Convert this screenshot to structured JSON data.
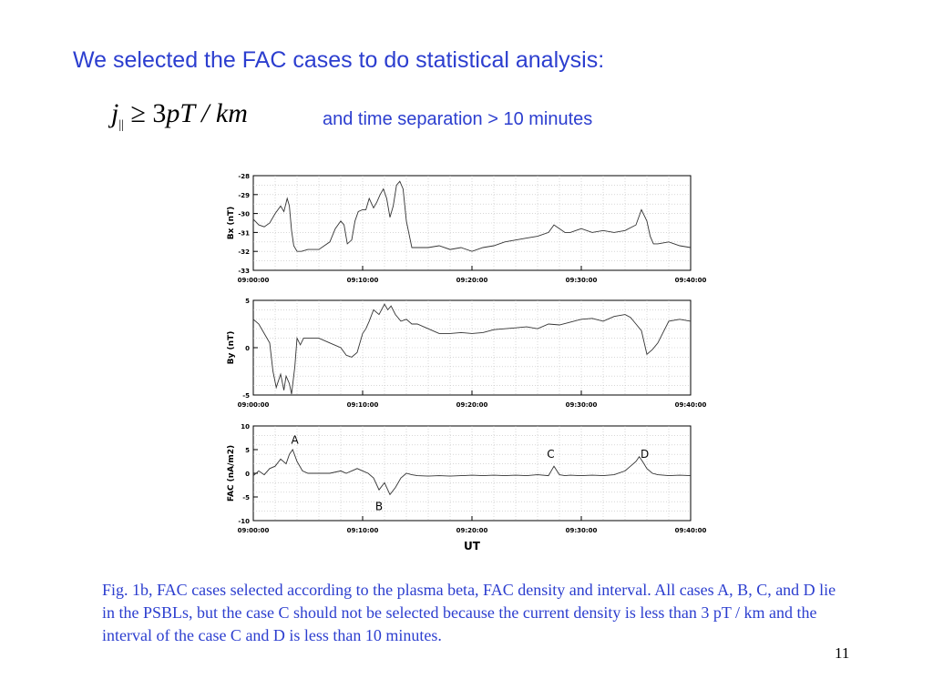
{
  "slide": {
    "heading": "We selected the FAC cases to do statistical analysis:",
    "formula": {
      "variable": "j",
      "subscript": "||",
      "relation": "≥",
      "value": "3",
      "unit": "pT / km"
    },
    "condition": "and time separation > 10 minutes",
    "caption": "Fig. 1b, FAC cases selected according to the plasma beta, FAC density and interval. All cases A, B, C, and D lie in the PSBLs, but the case C should not be selected because the current density is less than 3 pT / km and the interval of the case C and D is less than 10 minutes.",
    "page_number": "11"
  },
  "chart_data": [
    {
      "type": "line",
      "ylabel": "Bx (nT)",
      "xlim": [
        0,
        40
      ],
      "ylim": [
        -33,
        -28
      ],
      "yticks": [
        -28,
        -29,
        -30,
        -31,
        -32,
        -33
      ],
      "xtick_labels": [
        "09:00:00",
        "09:10:00",
        "09:20:00",
        "09:30:00",
        "09:40:00"
      ],
      "grid": true,
      "series": [
        {
          "color": "#333333",
          "x": [
            0,
            0.5,
            1,
            1.5,
            2,
            2.5,
            2.8,
            3.1,
            3.3,
            3.5,
            3.7,
            4,
            4.4,
            5,
            6,
            7,
            7.5,
            8,
            8.3,
            8.6,
            9,
            9.3,
            9.6,
            10,
            10.3,
            10.6,
            11,
            11.3,
            11.6,
            11.9,
            12.2,
            12.5,
            12.8,
            13.1,
            13.4,
            13.7,
            14,
            14.5,
            15,
            16,
            17,
            18,
            19,
            20,
            21,
            22,
            23,
            24,
            25,
            26,
            27,
            27.5,
            28,
            28.5,
            29,
            30,
            31,
            32,
            33,
            34,
            35,
            35.5,
            36,
            36.3,
            36.6,
            37,
            38,
            39,
            40
          ],
          "y": [
            -30.3,
            -30.6,
            -30.7,
            -30.5,
            -30.0,
            -29.6,
            -29.9,
            -29.2,
            -29.6,
            -30.9,
            -31.7,
            -32.0,
            -32.0,
            -31.9,
            -31.9,
            -31.5,
            -30.8,
            -30.4,
            -30.6,
            -31.6,
            -31.4,
            -30.4,
            -29.9,
            -29.8,
            -29.8,
            -29.2,
            -29.7,
            -29.4,
            -29.0,
            -28.7,
            -29.2,
            -30.2,
            -29.6,
            -28.5,
            -28.3,
            -28.7,
            -30.4,
            -31.8,
            -31.8,
            -31.8,
            -31.7,
            -31.9,
            -31.8,
            -32.0,
            -31.8,
            -31.7,
            -31.5,
            -31.4,
            -31.3,
            -31.2,
            -31.0,
            -30.6,
            -30.8,
            -31.0,
            -31.0,
            -30.8,
            -31.0,
            -30.9,
            -31.0,
            -30.9,
            -30.6,
            -29.8,
            -30.4,
            -31.2,
            -31.6,
            -31.6,
            -31.5,
            -31.7,
            -31.8
          ]
        }
      ]
    },
    {
      "type": "line",
      "ylabel": "By (nT)",
      "xlim": [
        0,
        40
      ],
      "ylim": [
        -5,
        5
      ],
      "yticks": [
        5,
        0,
        -5
      ],
      "xtick_labels": [
        "09:00:00",
        "09:10:00",
        "09:20:00",
        "09:30:00",
        "09:40:00"
      ],
      "grid": true,
      "series": [
        {
          "color": "#333333",
          "x": [
            0,
            0.5,
            1,
            1.5,
            1.8,
            2.1,
            2.5,
            2.8,
            3,
            3.3,
            3.5,
            3.8,
            4,
            4.3,
            4.6,
            5,
            6,
            7,
            8,
            8.5,
            9,
            9.5,
            10,
            10.3,
            10.6,
            11,
            11.5,
            12,
            12.3,
            12.6,
            13,
            13.5,
            14,
            14.5,
            15,
            16,
            17,
            18,
            19,
            20,
            21,
            22,
            23,
            24,
            25,
            26,
            27,
            28,
            29,
            30,
            31,
            32,
            33,
            34,
            34.5,
            35,
            35.5,
            36,
            36.5,
            37,
            38,
            39,
            40
          ],
          "y": [
            3.0,
            2.5,
            1.5,
            0.5,
            -2.5,
            -4.2,
            -2.8,
            -4.5,
            -3.0,
            -3.8,
            -4.9,
            -2.0,
            1.0,
            0.3,
            1.0,
            1.0,
            1.0,
            0.5,
            0.0,
            -0.8,
            -1.0,
            -0.5,
            1.5,
            2.0,
            2.8,
            4.0,
            3.5,
            4.6,
            4.0,
            4.4,
            3.5,
            2.8,
            3.0,
            2.5,
            2.5,
            2.0,
            1.5,
            1.5,
            1.6,
            1.5,
            1.6,
            1.9,
            2.0,
            2.1,
            2.2,
            2.0,
            2.5,
            2.4,
            2.7,
            3.0,
            3.1,
            2.8,
            3.3,
            3.5,
            3.2,
            2.5,
            1.8,
            -0.7,
            -0.2,
            0.5,
            2.8,
            3.0,
            2.8
          ]
        }
      ]
    },
    {
      "type": "line",
      "ylabel": "FAC (nA/m2)",
      "xlabel": "UT",
      "xlim": [
        0,
        40
      ],
      "ylim": [
        -10,
        10
      ],
      "yticks": [
        10,
        5,
        0,
        -5,
        -10
      ],
      "xtick_labels": [
        "09:00:00",
        "09:10:00",
        "09:20:00",
        "09:30:00",
        "09:40:00"
      ],
      "grid": true,
      "series": [
        {
          "color": "#333333",
          "x": [
            0,
            0.5,
            1,
            1.5,
            2,
            2.5,
            3,
            3.3,
            3.6,
            4,
            4.5,
            5,
            6,
            7,
            8,
            8.5,
            9,
            9.5,
            10,
            10.5,
            11,
            11.5,
            12,
            12.5,
            13,
            13.5,
            14,
            14.5,
            15,
            16,
            17,
            18,
            19,
            20,
            21,
            22,
            23,
            24,
            25,
            26,
            27,
            27.5,
            28,
            28.5,
            29,
            30,
            31,
            32,
            33,
            34,
            34.5,
            35,
            35.3,
            35.6,
            36,
            36.5,
            37,
            38,
            39,
            40
          ],
          "y": [
            -0.5,
            0.5,
            -0.3,
            1.0,
            1.5,
            3.0,
            2.0,
            4.0,
            5.0,
            2.5,
            0.5,
            0.0,
            0.0,
            0.0,
            0.5,
            0.0,
            0.5,
            1.0,
            0.5,
            0.0,
            -1.0,
            -3.5,
            -2.0,
            -4.5,
            -3.0,
            -1.0,
            0.0,
            -0.3,
            -0.5,
            -0.6,
            -0.5,
            -0.6,
            -0.5,
            -0.4,
            -0.5,
            -0.4,
            -0.5,
            -0.4,
            -0.5,
            -0.3,
            -0.5,
            1.5,
            -0.3,
            -0.5,
            -0.4,
            -0.5,
            -0.4,
            -0.5,
            -0.3,
            0.5,
            1.5,
            2.5,
            3.5,
            2.5,
            1.0,
            0.0,
            -0.3,
            -0.5,
            -0.4,
            -0.5
          ]
        }
      ],
      "annotations": [
        {
          "text": "A",
          "x": 3.8,
          "y": 7
        },
        {
          "text": "B",
          "x": 11.5,
          "y": -7
        },
        {
          "text": "C",
          "x": 27.2,
          "y": 4
        },
        {
          "text": "D",
          "x": 35.8,
          "y": 4
        }
      ]
    }
  ]
}
